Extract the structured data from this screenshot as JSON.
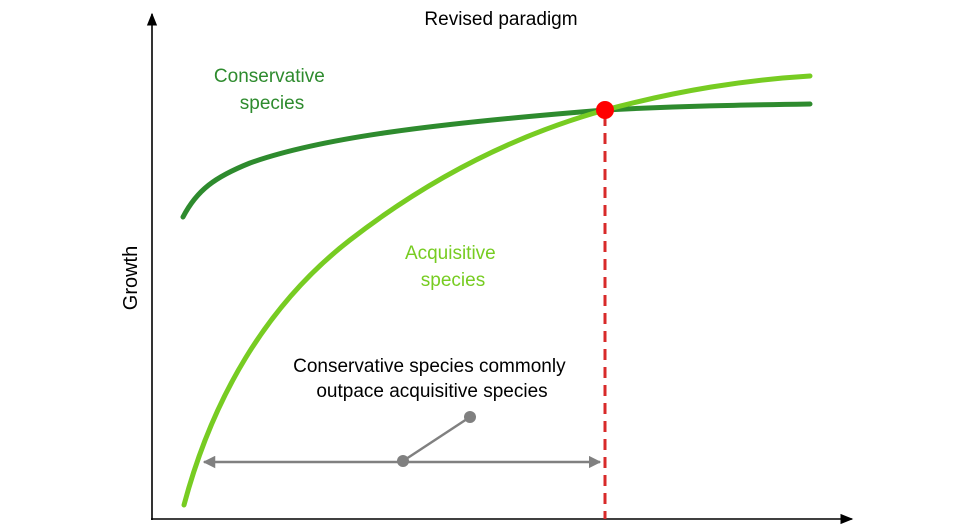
{
  "title": "Revised paradigm",
  "y_axis_label": "Growth",
  "annotation": {
    "line1": "Conservative species commonly",
    "line2": "outpace acquisitive species"
  },
  "series": {
    "conservative": {
      "line1": "Conservative",
      "line2": "species",
      "color": "#2e8b2e"
    },
    "acquisitive": {
      "line1": "Acquisitive",
      "line2": "species",
      "color": "#77cc22"
    }
  },
  "colors": {
    "axis": "#000000",
    "crossover_marker": "#ff0000",
    "crossover_dashed_line": "#d82a2a",
    "range_arrow": "#808080",
    "text": "#000000"
  }
}
